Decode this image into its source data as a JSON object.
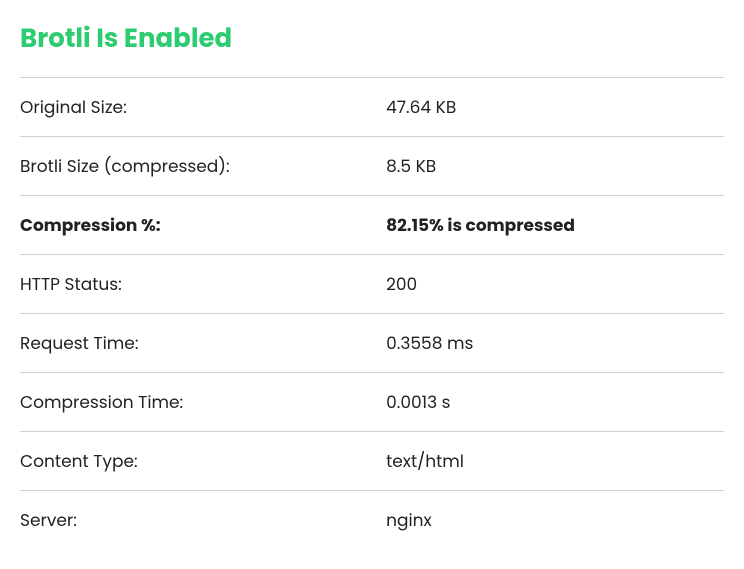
{
  "heading": "Brotli Is Enabled",
  "heading_color": "#2ecc71",
  "background_color": "#ffffff",
  "text_color": "#222222",
  "border_color": "#d0d0d0",
  "rows": [
    {
      "label": "Original Size:",
      "value": "47.64 KB",
      "bold": false
    },
    {
      "label": "Brotli Size (compressed):",
      "value": "8.5 KB",
      "bold": false
    },
    {
      "label": "Compression %:",
      "value": "82.15% is compressed",
      "bold": true
    },
    {
      "label": "HTTP Status:",
      "value": "200",
      "bold": false
    },
    {
      "label": "Request Time:",
      "value": "0.3558 ms",
      "bold": false
    },
    {
      "label": "Compression Time:",
      "value": "0.0013 s",
      "bold": false
    },
    {
      "label": "Content Type:",
      "value": "text/html",
      "bold": false
    },
    {
      "label": "Server:",
      "value": "nginx",
      "bold": false
    }
  ]
}
